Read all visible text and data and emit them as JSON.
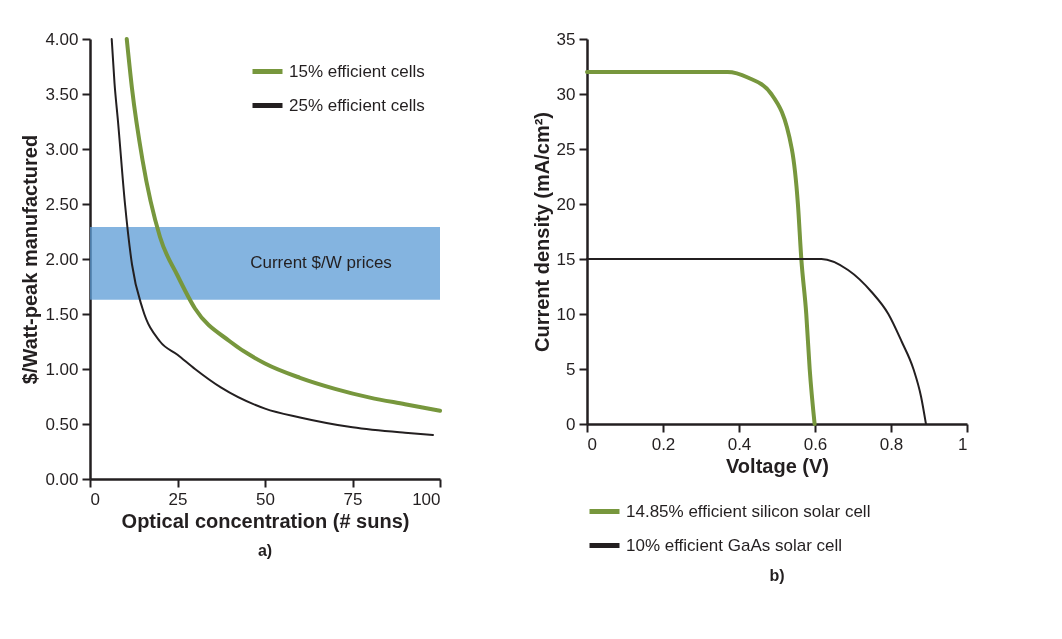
{
  "chart_data": [
    {
      "type": "line",
      "xlabel": "Optical concentration (# suns)",
      "ylabel": "$/Watt-peak manufactured",
      "annotations": [
        "a)"
      ],
      "legend": "top right",
      "grid": false,
      "xlim": [
        0,
        100
      ],
      "xticks": [
        0,
        25,
        50,
        75,
        100
      ],
      "ylim": [
        0,
        4
      ],
      "yticks": [
        {
          "value": 0,
          "label": "0.00"
        },
        {
          "value": 0.5,
          "label": "0.50"
        },
        {
          "value": 1,
          "label": "1.00"
        },
        {
          "value": 1.5,
          "label": "1.50"
        },
        {
          "value": 2,
          "label": "2.00"
        },
        {
          "value": 2.5,
          "label": "2.50"
        },
        {
          "value": 3,
          "label": "3.00"
        },
        {
          "value": 3.5,
          "label": "3.50"
        },
        {
          "value": 4,
          "label": "4.00"
        }
      ],
      "bands": [
        {
          "axis": "y",
          "from": 1.63,
          "to": 2.29,
          "label": "Current $/W prices",
          "color": "#5b9bd5"
        }
      ],
      "series": [
        {
          "name": "15% efficient cells",
          "color": "#77973d",
          "x": [
            10.5,
            12,
            15,
            20,
            25,
            30,
            40,
            50,
            60,
            70,
            80,
            90,
            100
          ],
          "values": [
            4.0,
            3.55,
            2.9,
            2.2,
            1.85,
            1.55,
            1.25,
            1.05,
            0.92,
            0.82,
            0.74,
            0.68,
            0.62
          ]
        },
        {
          "name": "25% efficient cells",
          "color": "#231f20",
          "x": [
            6.2,
            7,
            8,
            10,
            12,
            15,
            20,
            25,
            30,
            37.5,
            50,
            60,
            75,
            90,
            98
          ],
          "values": [
            4.0,
            3.6,
            3.25,
            2.5,
            1.95,
            1.55,
            1.25,
            1.13,
            1.0,
            0.83,
            0.64,
            0.56,
            0.47,
            0.42,
            0.4
          ]
        }
      ]
    },
    {
      "type": "line",
      "xlabel": "Voltage (V)",
      "ylabel": "Current density (mA/cm²)",
      "annotations": [
        "b)"
      ],
      "legend": "bottom",
      "grid": false,
      "xlim": [
        0,
        1
      ],
      "xticks": [
        0,
        0.2,
        0.4,
        0.6,
        0.8,
        1
      ],
      "ylim": [
        0,
        35
      ],
      "yticks": [
        0,
        5,
        10,
        15,
        20,
        25,
        30,
        35
      ],
      "series": [
        {
          "name": "14.85% efficient silicon solar cell",
          "color": "#77973d",
          "x": [
            0,
            0.37,
            0.423,
            0.485,
            0.539,
            0.555,
            0.564,
            0.577,
            0.586,
            0.599
          ],
          "values": [
            32,
            32,
            31.5,
            30,
            25,
            20,
            15,
            10,
            5,
            0
          ]
        },
        {
          "name": "10% efficient GaAs solar cell",
          "color": "#231f20",
          "x": [
            0,
            0.617,
            0.687,
            0.749,
            0.793,
            0.828,
            0.859,
            0.879,
            0.892
          ],
          "values": [
            15,
            15,
            14,
            12,
            10,
            7.5,
            5,
            2.5,
            0
          ]
        }
      ]
    }
  ]
}
